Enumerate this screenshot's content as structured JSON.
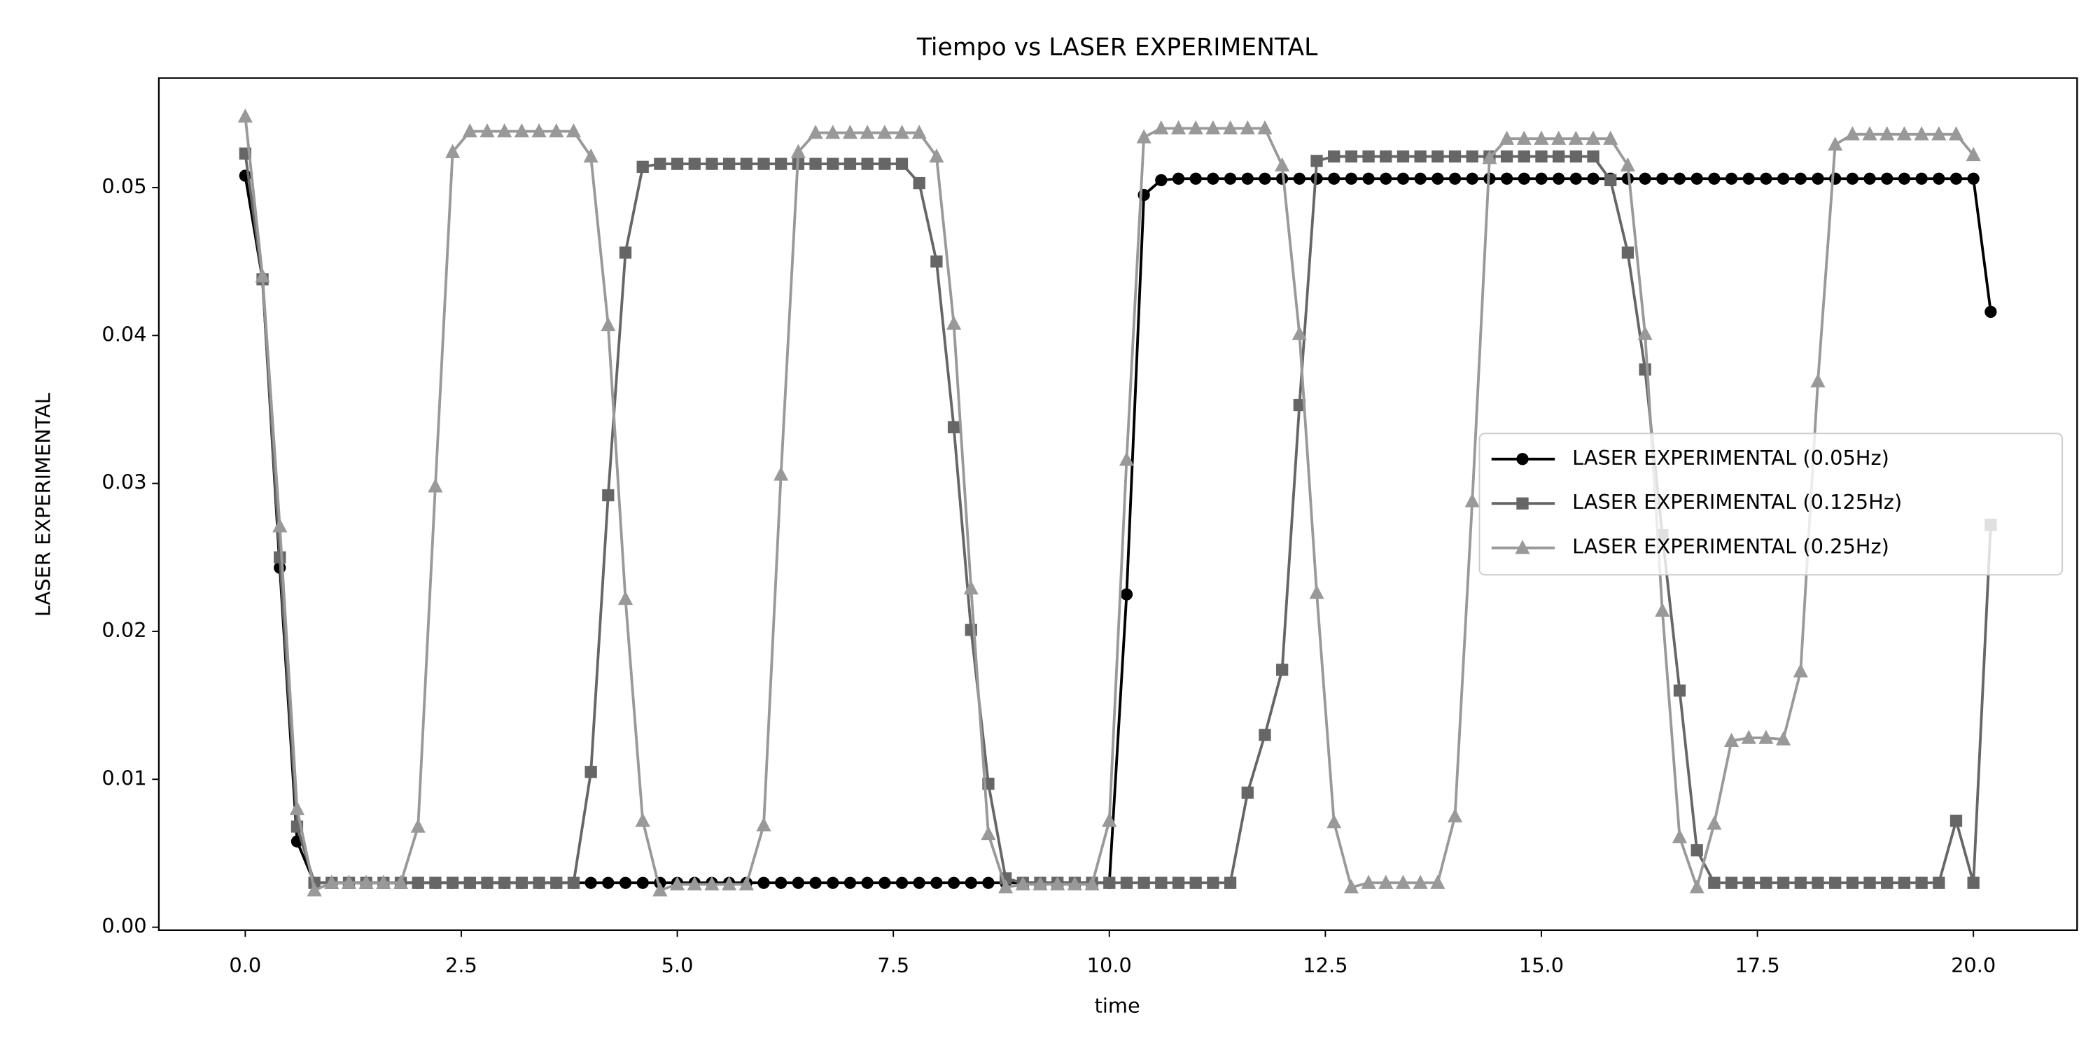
{
  "chart_data": {
    "type": "line",
    "title": "Tiempo vs LASER EXPERIMENTAL",
    "x_label": "time",
    "y_label": "LASER EXPERIMENTAL",
    "x": [
      0,
      0.2,
      0.4,
      0.6,
      0.8,
      1,
      1.2,
      1.4,
      1.6,
      1.8,
      2,
      2.2,
      2.4,
      2.6,
      2.8,
      3,
      3.2,
      3.4,
      3.6,
      3.8,
      4,
      4.2,
      4.4,
      4.6,
      4.8,
      5,
      5.2,
      5.4,
      5.6,
      5.8,
      6,
      6.2,
      6.4,
      6.6,
      6.8,
      7,
      7.2,
      7.4,
      7.6,
      7.8,
      8,
      8.2,
      8.4,
      8.6,
      8.8,
      9,
      9.2,
      9.4,
      9.6,
      9.8,
      10,
      10.2,
      10.4,
      10.6,
      10.8,
      11,
      11.2,
      11.4,
      11.6,
      11.8,
      12,
      12.2,
      12.4,
      12.6,
      12.8,
      13,
      13.2,
      13.4,
      13.6,
      13.8,
      14,
      14.2,
      14.4,
      14.6,
      14.8,
      15,
      15.2,
      15.4,
      15.6,
      15.8,
      16,
      16.2,
      16.4,
      16.6,
      16.8,
      17,
      17.2,
      17.4,
      17.6,
      17.8,
      18,
      18.2,
      18.4,
      18.6,
      18.8,
      19,
      19.2,
      19.4,
      19.6,
      19.8,
      20,
      20.2
    ],
    "series": [
      {
        "name": "LASER EXPERIMENTAL (0.05Hz)",
        "color": "#000000",
        "marker": "circle",
        "values": [
          0.0508,
          0.0438,
          0.0243,
          0.0058,
          0.003,
          0.003,
          0.003,
          0.003,
          0.003,
          0.003,
          0.003,
          0.003,
          0.003,
          0.003,
          0.003,
          0.003,
          0.003,
          0.003,
          0.003,
          0.003,
          0.003,
          0.003,
          0.003,
          0.003,
          0.003,
          0.003,
          0.003,
          0.003,
          0.003,
          0.003,
          0.003,
          0.003,
          0.003,
          0.003,
          0.003,
          0.003,
          0.003,
          0.003,
          0.003,
          0.003,
          0.003,
          0.003,
          0.003,
          0.003,
          0.003,
          0.003,
          0.003,
          0.003,
          0.003,
          0.003,
          0.003,
          0.0225,
          0.0495,
          0.0505,
          0.0506,
          0.0506,
          0.0506,
          0.0506,
          0.0506,
          0.0506,
          0.0506,
          0.0506,
          0.0506,
          0.0506,
          0.0506,
          0.0506,
          0.0506,
          0.0506,
          0.0506,
          0.0506,
          0.0506,
          0.0506,
          0.0506,
          0.0506,
          0.0506,
          0.0506,
          0.0506,
          0.0506,
          0.0506,
          0.0506,
          0.0506,
          0.0506,
          0.0506,
          0.0506,
          0.0506,
          0.0506,
          0.0506,
          0.0506,
          0.0506,
          0.0506,
          0.0506,
          0.0506,
          0.0506,
          0.0506,
          0.0506,
          0.0506,
          0.0506,
          0.0506,
          0.0506,
          0.0506,
          0.0506,
          0.0416
        ]
      },
      {
        "name": "LASER EXPERIMENTAL (0.125Hz)",
        "color": "#666666",
        "marker": "square",
        "values": [
          0.0523,
          0.0438,
          0.025,
          0.0068,
          0.003,
          0.003,
          0.003,
          0.003,
          0.003,
          0.003,
          0.003,
          0.003,
          0.003,
          0.003,
          0.003,
          0.003,
          0.003,
          0.003,
          0.003,
          0.003,
          0.0105,
          0.0292,
          0.0456,
          0.0514,
          0.0516,
          0.0516,
          0.0516,
          0.0516,
          0.0516,
          0.0516,
          0.0516,
          0.0516,
          0.0516,
          0.0516,
          0.0516,
          0.0516,
          0.0516,
          0.0516,
          0.0516,
          0.0503,
          0.045,
          0.0338,
          0.0201,
          0.0097,
          0.0033,
          0.003,
          0.003,
          0.003,
          0.003,
          0.003,
          0.003,
          0.003,
          0.003,
          0.003,
          0.003,
          0.003,
          0.003,
          0.003,
          0.0091,
          0.013,
          0.0174,
          0.0353,
          0.0518,
          0.0521,
          0.0521,
          0.0521,
          0.0521,
          0.0521,
          0.0521,
          0.0521,
          0.0521,
          0.0521,
          0.0521,
          0.0521,
          0.0521,
          0.0521,
          0.0521,
          0.0521,
          0.0521,
          0.0505,
          0.0456,
          0.0377,
          0.0265,
          0.016,
          0.0052,
          0.003,
          0.003,
          0.003,
          0.003,
          0.003,
          0.003,
          0.003,
          0.003,
          0.003,
          0.003,
          0.003,
          0.003,
          0.003,
          0.003,
          0.0072,
          0.003,
          0.0272
        ]
      },
      {
        "name": "LASER EXPERIMENTAL (0.25Hz)",
        "color": "#999999",
        "marker": "triangle",
        "values": [
          0.0548,
          0.044,
          0.0271,
          0.008,
          0.0025,
          0.003,
          0.003,
          0.003,
          0.003,
          0.003,
          0.0068,
          0.0298,
          0.0524,
          0.0538,
          0.0538,
          0.0538,
          0.0538,
          0.0538,
          0.0538,
          0.0538,
          0.0521,
          0.0407,
          0.0222,
          0.0072,
          0.0025,
          0.0029,
          0.0029,
          0.0029,
          0.0029,
          0.0029,
          0.0069,
          0.0306,
          0.0524,
          0.0537,
          0.0537,
          0.0537,
          0.0537,
          0.0537,
          0.0537,
          0.0537,
          0.0521,
          0.0408,
          0.0229,
          0.0063,
          0.0027,
          0.0029,
          0.0029,
          0.0029,
          0.0029,
          0.0029,
          0.0072,
          0.0316,
          0.0534,
          0.054,
          0.054,
          0.054,
          0.054,
          0.054,
          0.054,
          0.054,
          0.0515,
          0.0401,
          0.0226,
          0.0071,
          0.0027,
          0.003,
          0.003,
          0.003,
          0.003,
          0.003,
          0.0075,
          0.0288,
          0.052,
          0.0533,
          0.0533,
          0.0533,
          0.0533,
          0.0533,
          0.0533,
          0.0533,
          0.0515,
          0.0401,
          0.0214,
          0.0061,
          0.0027,
          0.007,
          0.0126,
          0.0128,
          0.0128,
          0.0127,
          0.0173,
          0.0369,
          0.0529,
          0.0536,
          0.0536,
          0.0536,
          0.0536,
          0.0536,
          0.0536,
          0.0536,
          0.0522,
          null
        ]
      }
    ],
    "xlim": [
      -1.0,
      21.2
    ],
    "ylim": [
      -0.0002,
      0.0574
    ],
    "xticks": [
      {
        "value": 0,
        "label": "0.0"
      },
      2.5,
      {
        "value": 5,
        "label": "5.0"
      },
      7.5,
      {
        "value": 10,
        "label": "10.0"
      },
      12.5,
      {
        "value": 15,
        "label": "15.0"
      },
      17.5,
      {
        "value": 20,
        "label": "20.0"
      }
    ],
    "yticks": [
      {
        "value": 0,
        "label": "0.00"
      },
      0.01,
      0.02,
      0.03,
      0.04,
      0.05
    ],
    "grid": false,
    "legend_loc": "center right"
  }
}
